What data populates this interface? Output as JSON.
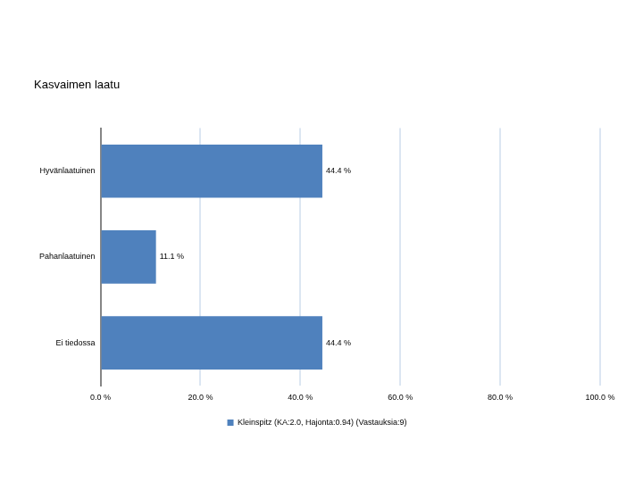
{
  "chart_data": {
    "type": "bar",
    "title": "Kasvaimen laatu",
    "orientation": "horizontal",
    "categories": [
      "Hyvänlaatuinen",
      "Pahanlaatuinen",
      "Ei tiedossa"
    ],
    "series": [
      {
        "name": "Kleinspitz (KA:2.0, Hajonta:0.94) (Vastauksia:9)",
        "color": "#4f81bd",
        "values": [
          44.4,
          11.1,
          44.4
        ],
        "value_labels": [
          "44.4 %",
          "11.1 %",
          "44.4 %"
        ]
      }
    ],
    "xlim": [
      0,
      100
    ],
    "xticks": [
      {
        "value": 0,
        "label": "0.0 %"
      },
      {
        "value": 20,
        "label": "20.0 %"
      },
      {
        "value": 40,
        "label": "40.0 %"
      },
      {
        "value": 60,
        "label": "60.0 %"
      },
      {
        "value": 80,
        "label": "80.0 %"
      },
      {
        "value": 100,
        "label": "100.0 %"
      }
    ],
    "grid": true,
    "legend": "bottom",
    "data_labels": true
  }
}
